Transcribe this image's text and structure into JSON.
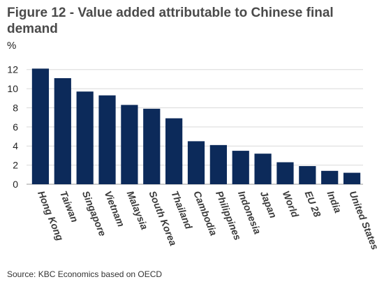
{
  "header": {
    "title": "Figure 12 - Value added attributable to Chinese final demand"
  },
  "footer": {
    "source": "Source: KBC Economics based on OECD"
  },
  "chart_data": {
    "type": "bar",
    "title": "Figure 12 - Value added attributable to Chinese final demand",
    "ylabel": "%",
    "xlabel": "",
    "ylim": [
      0,
      13
    ],
    "yticks": [
      0,
      2,
      4,
      6,
      8,
      10,
      12
    ],
    "grid": true,
    "bar_color": "#0c2a5a",
    "categories": [
      "Hong Kong",
      "Taiwan",
      "Singapore",
      "Vietnam",
      "Malaysia",
      "South Korea",
      "Thailand",
      "Cambodia",
      "Philippines",
      "Indonesia",
      "Japan",
      "World",
      "EU 28",
      "India",
      "United States"
    ],
    "values": [
      12.1,
      11.1,
      9.7,
      9.3,
      8.3,
      7.9,
      6.9,
      4.5,
      4.1,
      3.5,
      3.2,
      2.3,
      1.9,
      1.4,
      1.2
    ]
  }
}
